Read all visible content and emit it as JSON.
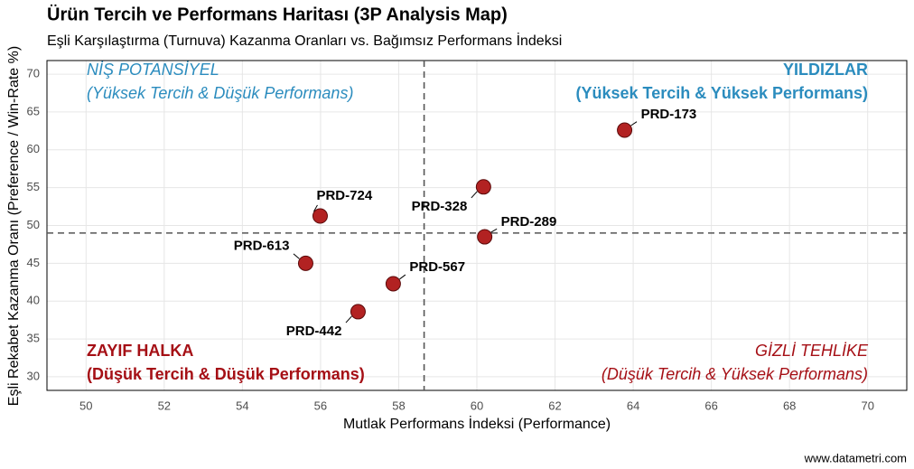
{
  "chart_data": {
    "type": "scatter",
    "title": "Ürün Tercih ve Performans Haritası (3P Analysis Map)",
    "subtitle": "Eşli Karşılaştırma (Turnuva) Kazanma Oranları vs. Bağımsız Performans İndeksi",
    "x_label": "Mutlak Performans İndeksi (Performance)",
    "y_label": "Eşli Rekabet Kazanma Oranı (Preference / Win-Rate %)",
    "source": "www.datametri.com",
    "xlim": [
      49,
      71
    ],
    "ylim": [
      28.2,
      71.8
    ],
    "xticks": [
      50,
      52,
      54,
      56,
      58,
      60,
      62,
      64,
      66,
      68,
      70
    ],
    "yticks": [
      30,
      35,
      40,
      45,
      50,
      55,
      60,
      65,
      70
    ],
    "grid": true,
    "x_reference": 58.65,
    "y_reference": 49.0,
    "series": [
      {
        "color": "#b22222",
        "labels": [
          "PRD-173",
          "PRD-724",
          "PRD-328",
          "PRD-289",
          "PRD-613",
          "PRD-567",
          "PRD-442"
        ],
        "x": [
          63.78,
          55.99,
          60.17,
          60.2,
          55.62,
          57.86,
          56.96
        ],
        "values": [
          62.6,
          51.25,
          55.1,
          48.5,
          45.0,
          42.3,
          38.6
        ]
      }
    ],
    "quadrants": [
      {
        "title": "NİŞ POTANSİYEL",
        "subtitle": "(Yüksek Tercih & Düşük Performans)",
        "color": "#2b8cbe"
      },
      {
        "title": "YILDIZLAR",
        "subtitle": "(Yüksek Tercih & Yüksek Performans)",
        "color": "#2b8cbe"
      },
      {
        "title": "ZAYIF HALKA",
        "subtitle": "(Düşük Tercih & Düşük Performans)",
        "color": "#a50f15"
      },
      {
        "title": "GİZLİ TEHLİKE",
        "subtitle": "(Düşük Tercih & Yüksek Performans)",
        "color": "#a50f15"
      }
    ]
  }
}
